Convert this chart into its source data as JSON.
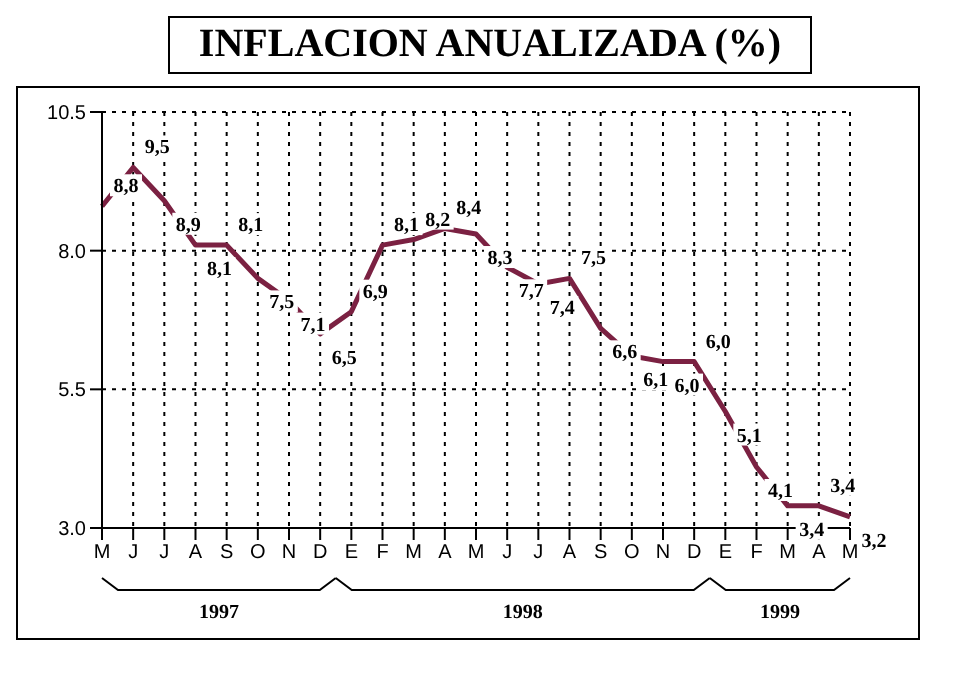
{
  "chart_data": {
    "type": "line",
    "title": "INFLACION ANUALIZADA (%)",
    "categories": [
      "M",
      "J",
      "J",
      "A",
      "S",
      "O",
      "N",
      "D",
      "E",
      "F",
      "M",
      "A",
      "M",
      "J",
      "J",
      "A",
      "S",
      "O",
      "N",
      "D",
      "E",
      "F",
      "M",
      "A",
      "M"
    ],
    "series": [
      {
        "color": "#7b2142",
        "values": [
          8.8,
          9.5,
          8.9,
          8.1,
          8.1,
          7.5,
          7.1,
          6.5,
          6.9,
          8.1,
          8.2,
          8.4,
          8.3,
          7.7,
          7.4,
          7.5,
          6.6,
          6.1,
          6.0,
          6.0,
          5.1,
          4.1,
          3.4,
          3.4,
          3.2
        ],
        "value_labels": [
          "8,8",
          "9,5",
          "8,9",
          "8,1",
          "8,1",
          "7,5",
          "7,1",
          "6,5",
          "6,9",
          "8,1",
          "8,2",
          "8,4",
          "8,3",
          "7,7",
          "7,4",
          "7,5",
          "6,6",
          "6,1",
          "6,0",
          "6,0",
          "5,1",
          "4,1",
          "3,4",
          "3,4",
          "3,2"
        ]
      }
    ],
    "ylim": [
      3,
      10.5
    ],
    "yticks": [
      {
        "value": 3,
        "label": "3.0"
      },
      {
        "value": 5.5,
        "label": "5.5"
      },
      {
        "value": 8,
        "label": "8.0"
      },
      {
        "value": 10.5,
        "label": "10.5"
      }
    ],
    "grid": true,
    "marker": "none",
    "line_style": "solid",
    "legend": false,
    "annotations": [
      "1997",
      "1998",
      "1999"
    ]
  }
}
